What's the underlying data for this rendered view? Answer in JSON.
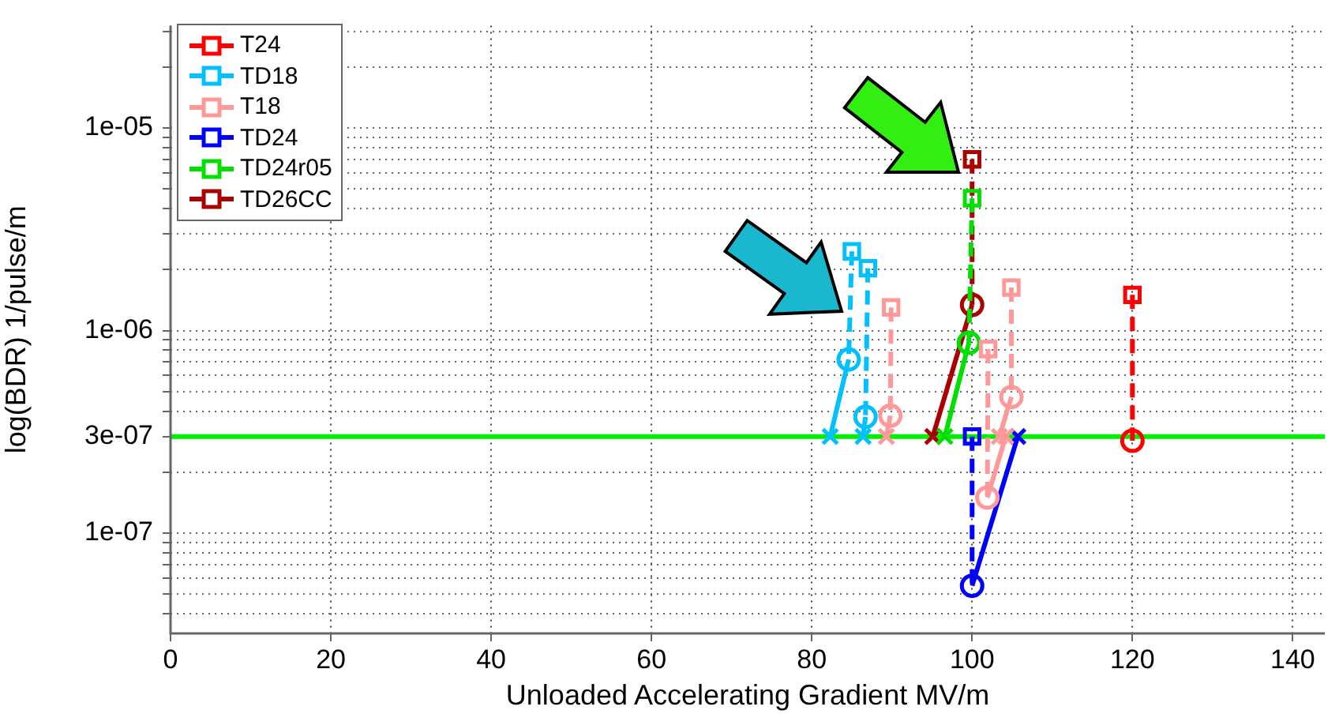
{
  "chart_data": {
    "type": "line",
    "xlabel": "Unloaded Accelerating Gradient MV/m",
    "ylabel": "log(BDR) 1/pulse/m",
    "xlim": [
      0,
      144
    ],
    "xticks": [
      0,
      20,
      40,
      60,
      80,
      100,
      120,
      140
    ],
    "ylim": [
      3.2e-08,
      3.2e-05
    ],
    "log": "y",
    "yticks": [
      {
        "value": 4e-08,
        "label": null
      },
      {
        "value": 5e-08,
        "label": null
      },
      {
        "value": 6e-08,
        "label": null
      },
      {
        "value": 7e-08,
        "label": null
      },
      {
        "value": 8e-08,
        "label": null
      },
      {
        "value": 9e-08,
        "label": null
      },
      {
        "value": 1e-07,
        "label": "1e-07"
      },
      {
        "value": 2e-07,
        "label": null
      },
      {
        "value": 3e-07,
        "label": "3e-07"
      },
      {
        "value": 4e-07,
        "label": null
      },
      {
        "value": 5e-07,
        "label": null
      },
      {
        "value": 6e-07,
        "label": null
      },
      {
        "value": 7e-07,
        "label": null
      },
      {
        "value": 8e-07,
        "label": null
      },
      {
        "value": 9e-07,
        "label": null
      },
      {
        "value": 1e-06,
        "label": "1e-06"
      },
      {
        "value": 2e-06,
        "label": null
      },
      {
        "value": 3e-06,
        "label": null
      },
      {
        "value": 4e-06,
        "label": null
      },
      {
        "value": 5e-06,
        "label": null
      },
      {
        "value": 6e-06,
        "label": null
      },
      {
        "value": 7e-06,
        "label": null
      },
      {
        "value": 8e-06,
        "label": null
      },
      {
        "value": 9e-06,
        "label": null
      },
      {
        "value": 1e-05,
        "label": "1e-05"
      },
      {
        "value": 2e-05,
        "label": null
      },
      {
        "value": 3e-05,
        "label": null
      }
    ],
    "grid": true,
    "legend": "top left",
    "ref_lines": [
      {
        "axis": "y",
        "value": 3e-07,
        "color": "#00ee00"
      }
    ],
    "series": [
      {
        "name": "T24",
        "color": "#ff0000",
        "x": [
          120,
          120
        ],
        "values": [
          1.5e-06,
          2.86e-07
        ],
        "marker": [
          "square",
          "circle"
        ],
        "line_style": [
          "dashed",
          null
        ]
      },
      {
        "name": "TD18",
        "color": "#00c0ff",
        "x": [
          85,
          84.6,
          82.3,
          null,
          87,
          86.7,
          86.4
        ],
        "values": [
          2.46e-06,
          7.2e-07,
          3e-07,
          null,
          2.03e-06,
          3.75e-07,
          3e-07
        ],
        "marker": [
          "square",
          "circle",
          "cross",
          null,
          "square",
          "circle",
          "cross"
        ],
        "line_style": [
          "dashed",
          "solid",
          null,
          null,
          "dashed",
          "solid",
          null
        ]
      },
      {
        "name": "T18",
        "color": "#ff9999",
        "x": [
          89.9,
          89.8,
          89.3,
          null,
          102,
          101.9,
          104.2,
          null,
          104.9,
          104.9,
          103.4
        ],
        "values": [
          1.3e-06,
          3.8e-07,
          3e-07,
          null,
          8.1e-07,
          1.5e-07,
          3e-07,
          null,
          1.63e-06,
          4.7e-07,
          3e-07
        ],
        "marker": [
          "square",
          "circle",
          "cross",
          null,
          "square",
          "circle",
          "cross",
          null,
          "square",
          "circle",
          "cross"
        ],
        "line_style": [
          "dashed",
          "solid",
          null,
          null,
          "dashed",
          "solid",
          null,
          null,
          "dashed",
          "solid",
          null
        ]
      },
      {
        "name": "TD24",
        "color": "#0000ff",
        "x": [
          100,
          100,
          105.7
        ],
        "values": [
          3e-07,
          5.5e-08,
          3e-07
        ],
        "marker": [
          "square",
          "circle",
          "cross"
        ],
        "line_style": [
          "dashed",
          "solid",
          null
        ]
      },
      {
        "name": "TD24r05",
        "color": "#00e000",
        "x": [
          100,
          99.6,
          96.6
        ],
        "values": [
          4.5e-06,
          8.7e-07,
          3e-07
        ],
        "marker": [
          "square",
          "circle",
          "cross"
        ],
        "line_style": [
          "dashed",
          "solid",
          null
        ]
      },
      {
        "name": "TD26CC",
        "color": "#aa0000",
        "x": [
          100,
          100,
          95.1
        ],
        "values": [
          7e-06,
          1.34e-06,
          3e-07
        ],
        "marker": [
          "square",
          "circle",
          "cross"
        ],
        "line_style": [
          "dashed",
          "solid",
          null
        ]
      }
    ]
  }
}
